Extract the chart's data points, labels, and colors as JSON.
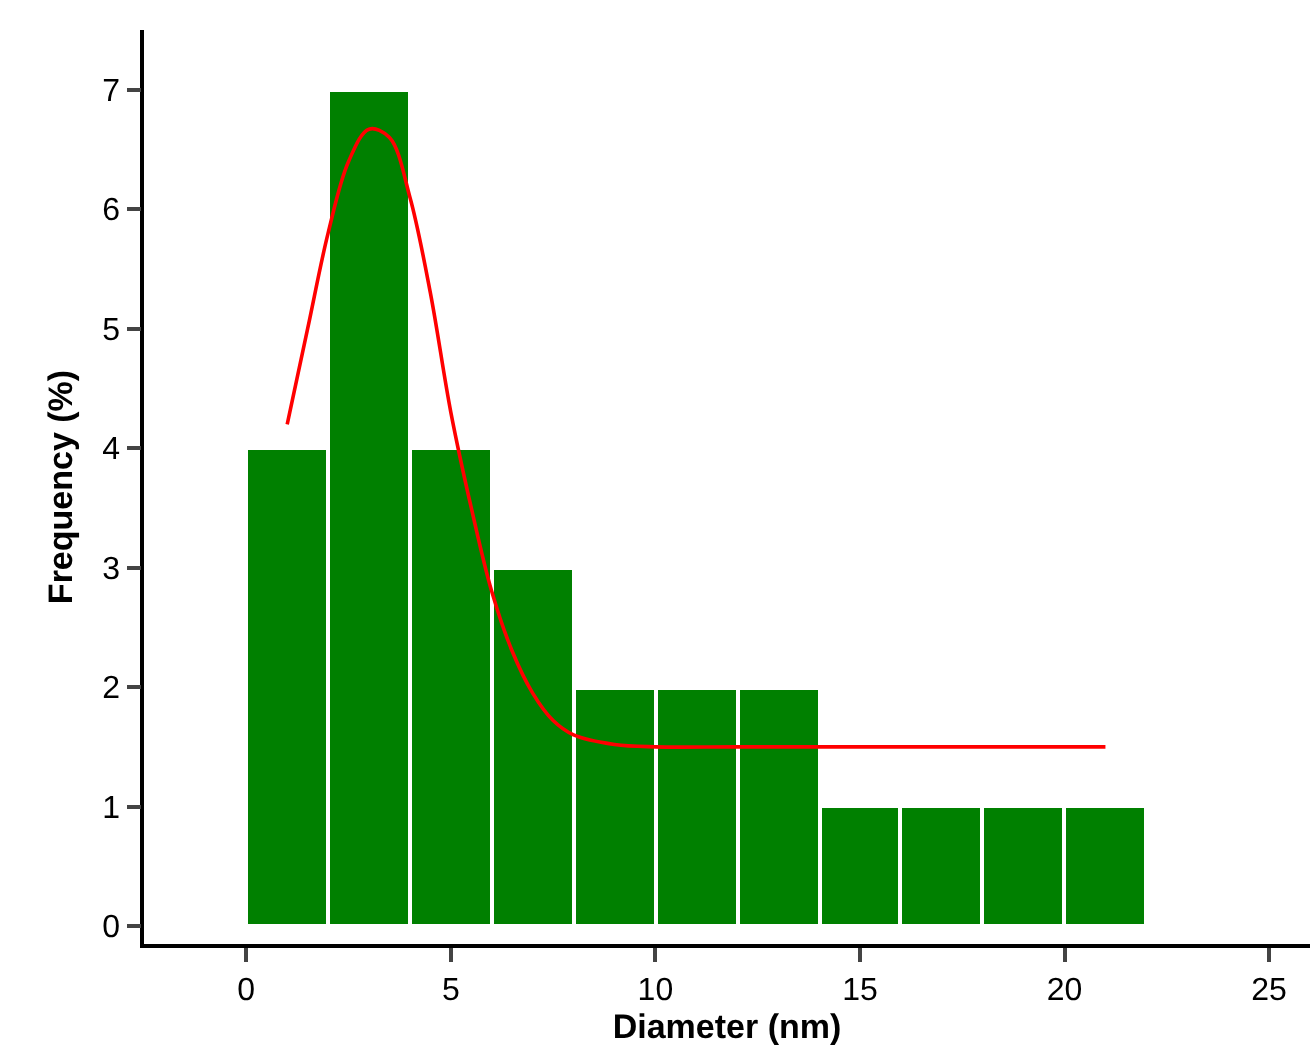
{
  "chart_data": {
    "type": "histogram",
    "xlabel": "Diameter (nm)",
    "ylabel": "Frequency (%)",
    "bins": [
      0,
      2,
      4,
      6,
      8,
      10,
      12,
      14,
      16,
      18,
      20,
      22
    ],
    "values": [
      4,
      7,
      4,
      3,
      2,
      2,
      2,
      1,
      1,
      1,
      1
    ],
    "color": "#008000",
    "series": [
      {
        "type": "line",
        "color": "#ff0000",
        "x": [
          1,
          1.5,
          2,
          2.5,
          3,
          3.5,
          4,
          4.5,
          5,
          5.5,
          6,
          6.5,
          7,
          7.5,
          8,
          9,
          10,
          12,
          15,
          18,
          21
        ],
        "values": [
          4.2,
          5.0,
          5.8,
          6.4,
          6.67,
          6.6,
          6.1,
          5.3,
          4.3,
          3.5,
          2.8,
          2.3,
          1.95,
          1.72,
          1.6,
          1.52,
          1.5,
          1.5,
          1.5,
          1.5,
          1.5
        ]
      }
    ],
    "xlim": [
      -2.5,
      26
    ],
    "xticks": [
      0,
      5,
      10,
      15,
      20,
      25
    ],
    "ylim": [
      -0.15,
      7.5
    ],
    "yticks": [
      0,
      1,
      2,
      3,
      4,
      5,
      6,
      7
    ],
    "grid": false,
    "marker": "none",
    "line_style": "solid"
  }
}
